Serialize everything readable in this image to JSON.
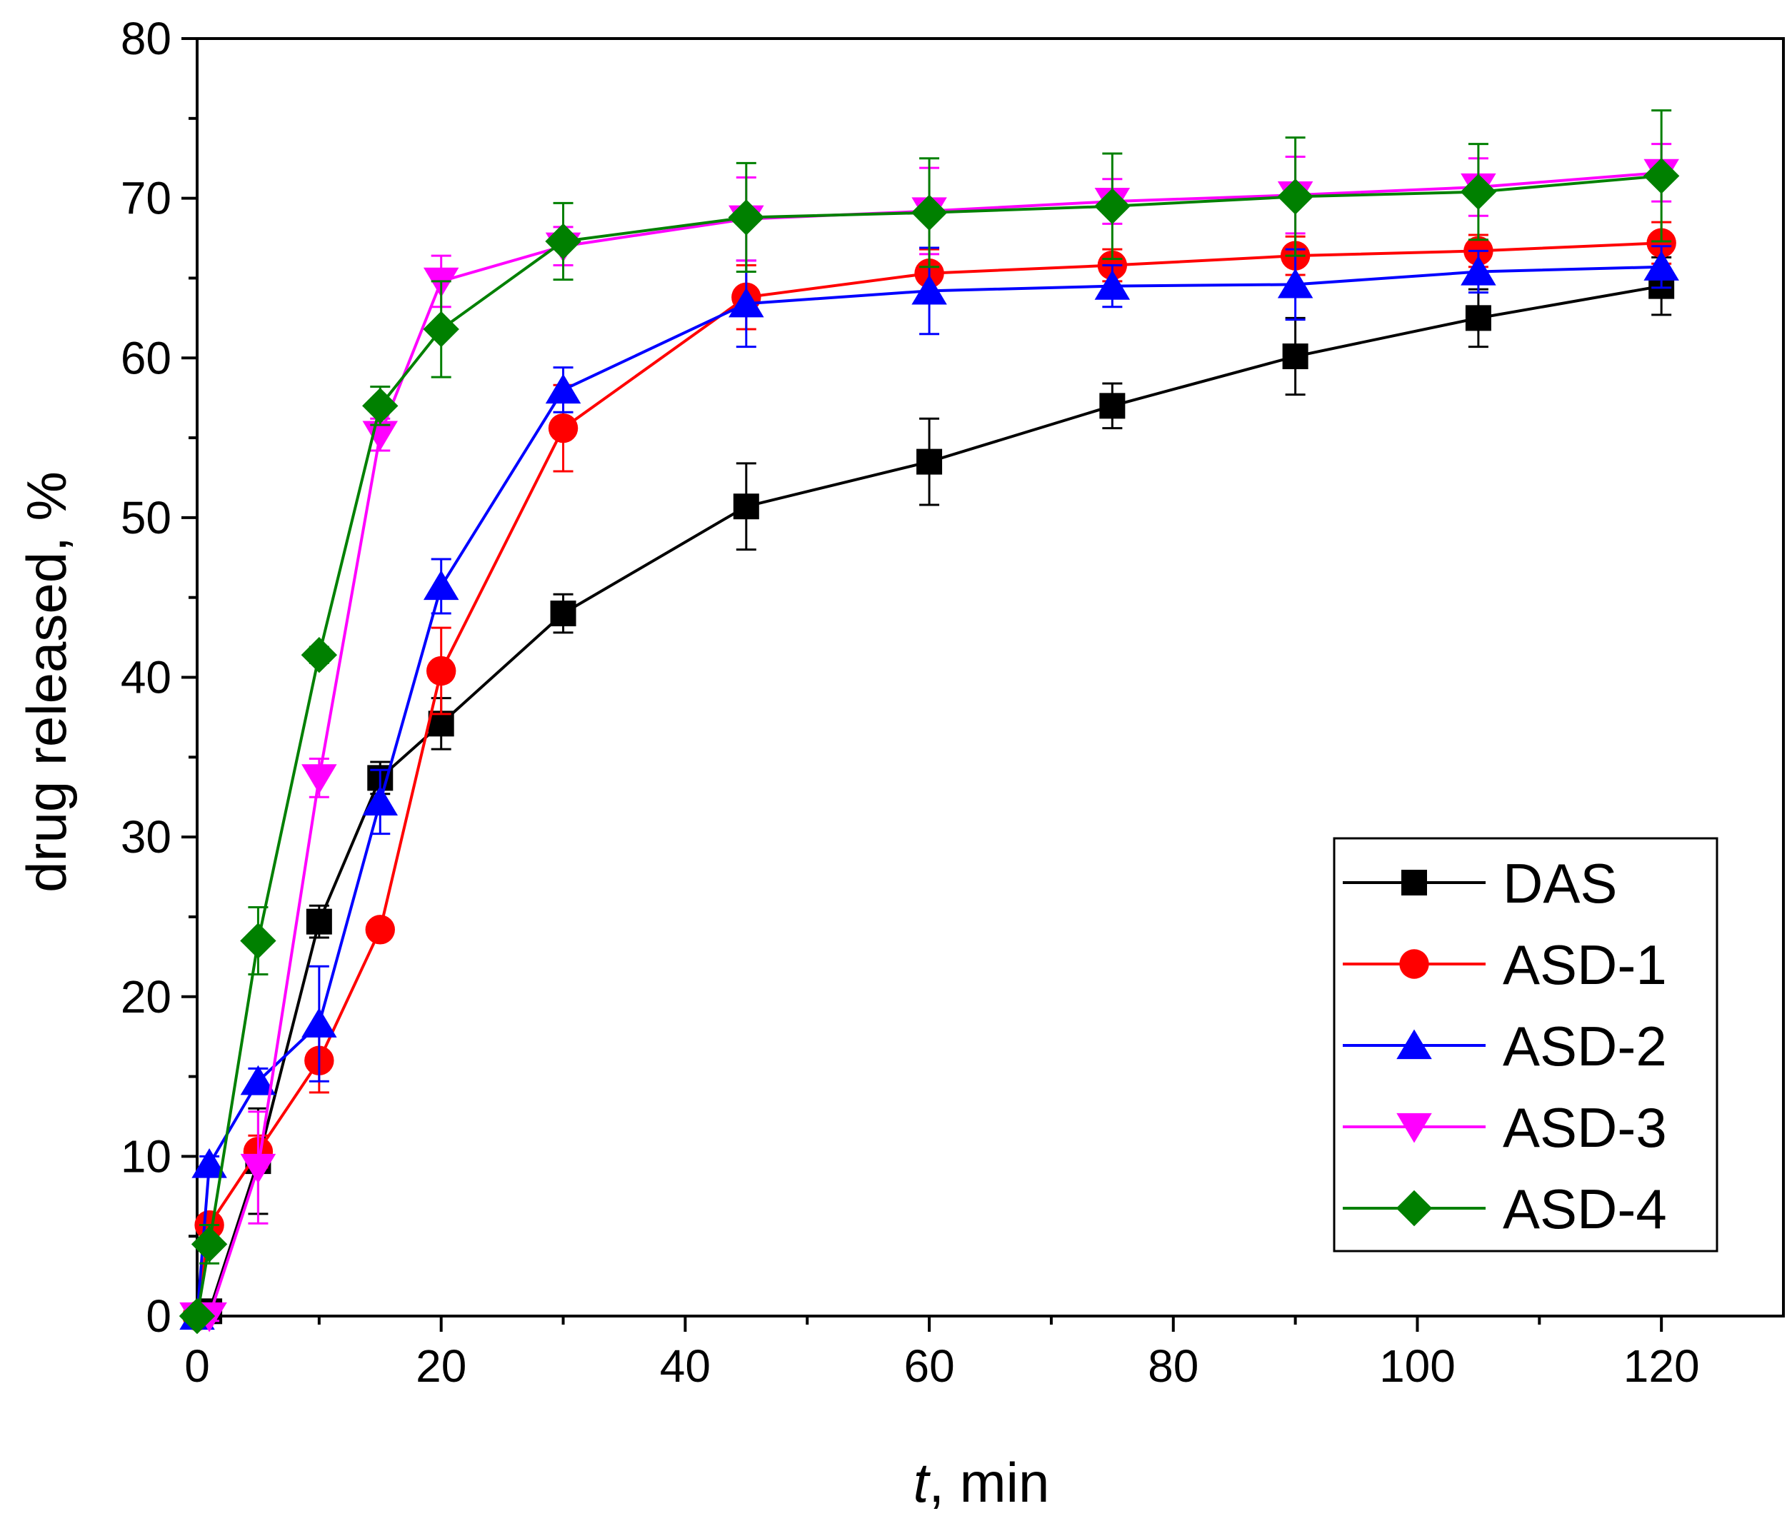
{
  "chart_data": {
    "type": "line",
    "title": "",
    "xlabel_var": "t",
    "xlabel_rest": ", min",
    "ylabel": "drug released, %",
    "xlim": [
      0,
      130
    ],
    "ylim": [
      0,
      80
    ],
    "xticks": [
      0,
      20,
      40,
      60,
      80,
      100,
      120
    ],
    "yticks": [
      0,
      10,
      20,
      30,
      40,
      50,
      60,
      70,
      80
    ],
    "grid": false,
    "legend_position": "bottom-right",
    "series": [
      {
        "name": "DAS",
        "color": "#000000",
        "marker": "square",
        "x": [
          0,
          1,
          5,
          10,
          15,
          20,
          30,
          45,
          60,
          75,
          90,
          105,
          120
        ],
        "y": [
          0,
          0.3,
          9.7,
          24.7,
          33.7,
          37.1,
          44.0,
          50.7,
          53.5,
          57.0,
          60.1,
          62.5,
          64.5
        ],
        "err": [
          0,
          0.5,
          3.3,
          1.0,
          1.0,
          1.6,
          1.2,
          2.7,
          2.7,
          1.4,
          2.4,
          1.8,
          1.8
        ]
      },
      {
        "name": "ASD-1",
        "color": "#ff0000",
        "marker": "circle",
        "x": [
          0,
          1,
          5,
          10,
          15,
          20,
          30,
          45,
          60,
          75,
          90,
          105,
          120
        ],
        "y": [
          0,
          5.7,
          10.3,
          16.0,
          24.2,
          40.4,
          55.6,
          63.8,
          65.3,
          65.8,
          66.4,
          66.7,
          67.2
        ],
        "err": [
          0,
          0.5,
          1.0,
          2.0,
          0.5,
          2.7,
          2.7,
          2.0,
          1.5,
          1.0,
          1.2,
          1.0,
          1.3
        ]
      },
      {
        "name": "ASD-2",
        "color": "#0000ff",
        "marker": "triangle-up",
        "x": [
          0,
          1,
          5,
          10,
          15,
          20,
          30,
          45,
          60,
          75,
          90,
          105,
          120
        ],
        "y": [
          0,
          9.5,
          14.7,
          18.3,
          32.2,
          45.7,
          58.0,
          63.4,
          64.2,
          64.5,
          64.6,
          65.4,
          65.7
        ],
        "err": [
          0,
          0.5,
          0.8,
          3.6,
          2.0,
          1.7,
          1.4,
          2.7,
          2.7,
          1.3,
          2.2,
          1.3,
          1.3
        ]
      },
      {
        "name": "ASD-3",
        "color": "#ff00ff",
        "marker": "triangle-down",
        "x": [
          0,
          1,
          5,
          10,
          15,
          20,
          30,
          45,
          60,
          75,
          90,
          105,
          120
        ],
        "y": [
          0,
          0,
          9.3,
          33.7,
          55.2,
          64.8,
          67.0,
          68.7,
          69.2,
          69.8,
          70.2,
          70.7,
          71.6
        ],
        "err": [
          0,
          0.3,
          3.5,
          1.2,
          1.0,
          1.6,
          1.2,
          2.6,
          2.7,
          1.4,
          2.4,
          1.8,
          1.8
        ]
      },
      {
        "name": "ASD-4",
        "color": "#008000",
        "marker": "diamond",
        "x": [
          0,
          1,
          5,
          10,
          15,
          20,
          30,
          45,
          60,
          75,
          90,
          105,
          120
        ],
        "y": [
          0,
          4.5,
          23.5,
          41.4,
          57.0,
          61.8,
          67.3,
          68.8,
          69.1,
          69.5,
          70.1,
          70.4,
          71.4
        ],
        "err": [
          0,
          1.2,
          2.1,
          0.5,
          1.2,
          3.0,
          2.4,
          3.4,
          3.4,
          3.3,
          3.7,
          3.0,
          4.1
        ]
      }
    ]
  }
}
